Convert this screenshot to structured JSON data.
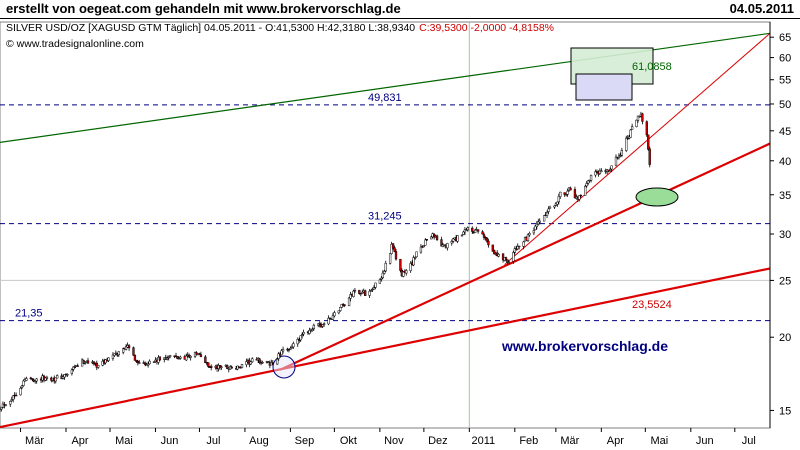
{
  "header": {
    "title": "erstellt von oegeat.com gehandeln mit www.brokervorschlag.de",
    "date": "04.05.2011"
  },
  "chart_data": {
    "type": "line",
    "subtype": "candlestick",
    "info_line": {
      "symbol": "SILVER USD/OZ [XAGUSD GTM  Täglich] 04.05.2011 - O:41,5300 H:42,3180 L:38,9340",
      "change": "C:39,5300 -2,0000 -4,8158%",
      "change_color": "#cc0000"
    },
    "copyright": "© www.tradesignalonline.com",
    "watermark": "www.brokervorschlag.de",
    "y_axis": {
      "scale": "log",
      "range": [
        14,
        69
      ],
      "ticks": [
        15,
        20,
        25,
        30,
        35,
        40,
        45,
        50,
        55,
        60,
        65
      ],
      "position": "right"
    },
    "x_axis": {
      "range": [
        "2010-02-15",
        "2011-07-25"
      ],
      "ticks": [
        {
          "label": "Mär",
          "date": "2010-03-01"
        },
        {
          "label": "Apr",
          "date": "2010-04-01"
        },
        {
          "label": "Mai",
          "date": "2010-05-01"
        },
        {
          "label": "Jun",
          "date": "2010-06-01"
        },
        {
          "label": "Jul",
          "date": "2010-07-01"
        },
        {
          "label": "Aug",
          "date": "2010-08-01"
        },
        {
          "label": "Sep",
          "date": "2010-09-01"
        },
        {
          "label": "Okt",
          "date": "2010-10-01"
        },
        {
          "label": "Nov",
          "date": "2010-11-01"
        },
        {
          "label": "Dez",
          "date": "2010-12-01"
        },
        {
          "label": "2011",
          "date": "2011-01-01"
        },
        {
          "label": "Feb",
          "date": "2011-02-01"
        },
        {
          "label": "Mär",
          "date": "2011-03-01"
        },
        {
          "label": "Apr",
          "date": "2011-04-01"
        },
        {
          "label": "Mai",
          "date": "2011-05-01"
        },
        {
          "label": "Jun",
          "date": "2011-06-01"
        },
        {
          "label": "Jul",
          "date": "2011-07-01"
        }
      ],
      "year_divider": "2011-01-01"
    },
    "price_path": [
      [
        "2010-02-15",
        15.2
      ],
      [
        "2010-02-25",
        16.0
      ],
      [
        "2010-03-05",
        16.9
      ],
      [
        "2010-03-15",
        17.1
      ],
      [
        "2010-03-25",
        16.9
      ],
      [
        "2010-04-05",
        17.6
      ],
      [
        "2010-04-15",
        18.2
      ],
      [
        "2010-04-25",
        18.0
      ],
      [
        "2010-05-05",
        18.6
      ],
      [
        "2010-05-12",
        19.5
      ],
      [
        "2010-05-20",
        18.0
      ],
      [
        "2010-06-01",
        18.3
      ],
      [
        "2010-06-10",
        18.4
      ],
      [
        "2010-06-20",
        18.6
      ],
      [
        "2010-06-30",
        18.6
      ],
      [
        "2010-07-10",
        17.8
      ],
      [
        "2010-07-20",
        17.7
      ],
      [
        "2010-07-30",
        17.9
      ],
      [
        "2010-08-10",
        18.2
      ],
      [
        "2010-08-20",
        18.1
      ],
      [
        "2010-08-31",
        19.2
      ],
      [
        "2010-09-10",
        20.2
      ],
      [
        "2010-09-20",
        20.9
      ],
      [
        "2010-09-30",
        21.7
      ],
      [
        "2010-10-08",
        22.8
      ],
      [
        "2010-10-15",
        24.2
      ],
      [
        "2010-10-22",
        23.6
      ],
      [
        "2010-11-01",
        25.0
      ],
      [
        "2010-11-09",
        28.5
      ],
      [
        "2010-11-16",
        25.4
      ],
      [
        "2010-11-25",
        27.5
      ],
      [
        "2010-12-07",
        30.1
      ],
      [
        "2010-12-15",
        28.5
      ],
      [
        "2010-12-24",
        29.4
      ],
      [
        "2010-12-31",
        30.8
      ],
      [
        "2011-01-10",
        29.7
      ],
      [
        "2011-01-20",
        27.8
      ],
      [
        "2011-01-28",
        26.8
      ],
      [
        "2011-02-04",
        28.9
      ],
      [
        "2011-02-15",
        30.5
      ],
      [
        "2011-02-25",
        33.2
      ],
      [
        "2011-03-04",
        35.0
      ],
      [
        "2011-03-10",
        35.4
      ],
      [
        "2011-03-16",
        34.4
      ],
      [
        "2011-03-25",
        37.4
      ],
      [
        "2011-04-05",
        38.5
      ],
      [
        "2011-04-15",
        41.5
      ],
      [
        "2011-04-25",
        47.0
      ],
      [
        "2011-04-28",
        48.6
      ],
      [
        "2011-05-02",
        44.0
      ],
      [
        "2011-05-04",
        39.5
      ]
    ],
    "horizontal_levels": [
      {
        "label": "49,831",
        "value": 49.831
      },
      {
        "label": "31,245",
        "value": 31.245
      },
      {
        "label": "21,35",
        "value": 21.35
      }
    ],
    "trendlines": [
      {
        "name": "upper-channel",
        "color": "#006600",
        "p1": [
          "2010-02-15",
          43.0
        ],
        "p2": [
          "2011-07-25",
          66.0
        ]
      },
      {
        "name": "support-steep",
        "color": "#dd0000",
        "p1": [
          "2010-08-25",
          17.6
        ],
        "p2": [
          "2011-07-25",
          42.8
        ]
      },
      {
        "name": "support-long",
        "color": "#dd0000",
        "p1": [
          "2010-02-15",
          14.05
        ],
        "p2": [
          "2011-07-25",
          26.2
        ]
      },
      {
        "name": "support-thin",
        "color": "#dd0000",
        "p1": [
          "2011-01-25",
          26.6
        ],
        "p2": [
          "2011-07-25",
          66.0
        ]
      }
    ],
    "annotations": [
      {
        "text": "61,0858",
        "color": "#006600"
      },
      {
        "text": "23,5524",
        "color": "#cc0000"
      }
    ]
  }
}
